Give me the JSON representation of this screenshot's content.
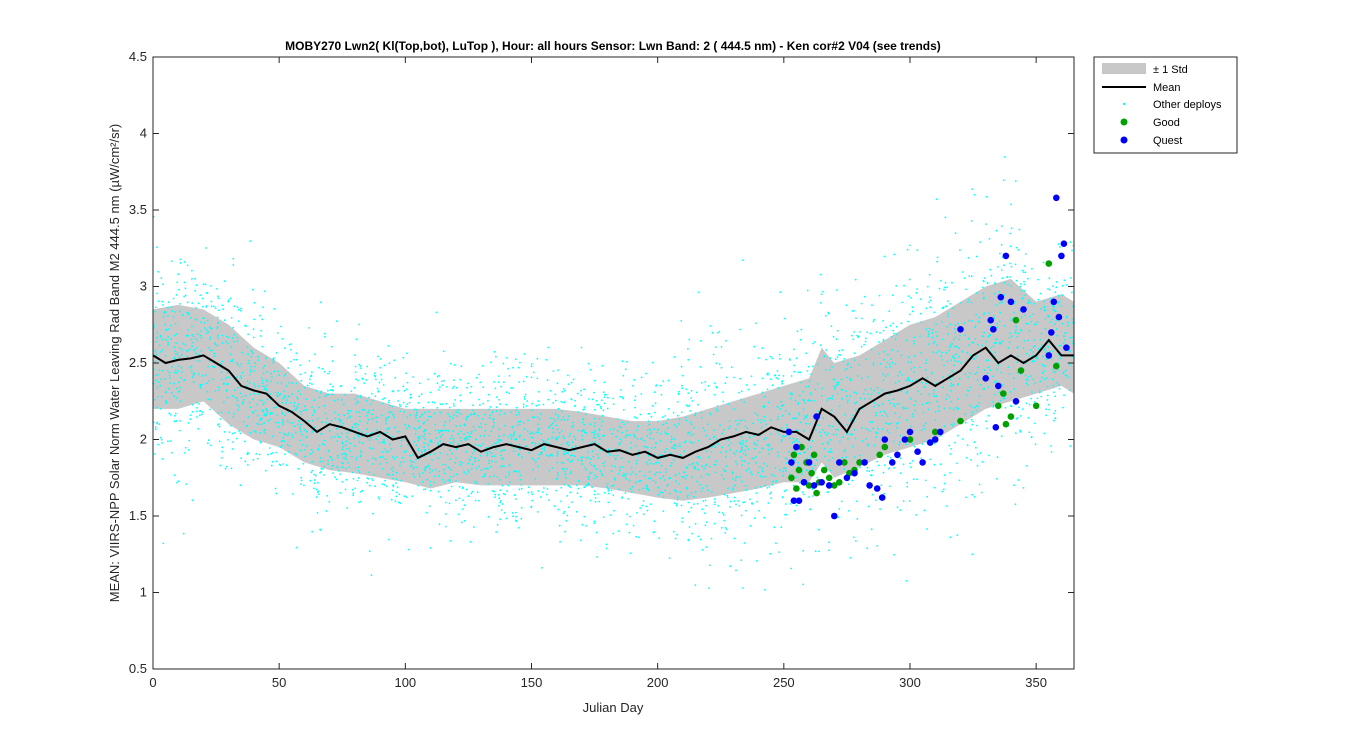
{
  "chart_data": {
    "type": "scatter",
    "title": "MOBY270   Lwn2( Kl(Top,bot), LuTop ),   Hour: all hours  Sensor: Lwn Band: 2 ( 444.5 nm)  - Ken cor#2 V04 (see trends)",
    "xlabel": "Julian Day",
    "ylabel": "MEAN: VIIRS-NPP Solar Norm Water Leaving Rad Band M2 444.5 nm (µW/cm²/sr)",
    "xlim": [
      0,
      365
    ],
    "ylim": [
      0.5,
      4.5
    ],
    "xticks": [
      0,
      50,
      100,
      150,
      200,
      250,
      300,
      350
    ],
    "yticks": [
      0.5,
      1,
      1.5,
      2,
      2.5,
      3,
      3.5,
      4,
      4.5
    ],
    "xtick_labels": [
      "0",
      "50",
      "100",
      "150",
      "200",
      "250",
      "300",
      "350"
    ],
    "ytick_labels": [
      "0.5",
      "1",
      "1.5",
      "2",
      "2.5",
      "3",
      "3.5",
      "4",
      "4.5"
    ],
    "grid": false,
    "legend_position": "outside-top-right",
    "colors": {
      "std_band": "#c8c8c8",
      "mean": "#000000",
      "other": "#00ffff",
      "good": "#00a000",
      "quest": "#0000ff"
    },
    "series": [
      {
        "name": "± 1 Std",
        "type": "band",
        "x": [
          0,
          10,
          20,
          30,
          40,
          50,
          60,
          70,
          80,
          90,
          100,
          110,
          120,
          130,
          140,
          150,
          160,
          170,
          180,
          190,
          200,
          210,
          220,
          230,
          240,
          250,
          260,
          265,
          270,
          280,
          290,
          300,
          310,
          320,
          330,
          340,
          350,
          360,
          365
        ],
        "lower": [
          2.2,
          2.2,
          2.25,
          2.1,
          2.0,
          1.95,
          1.85,
          1.8,
          1.78,
          1.75,
          1.72,
          1.68,
          1.72,
          1.7,
          1.7,
          1.7,
          1.7,
          1.7,
          1.68,
          1.65,
          1.62,
          1.6,
          1.62,
          1.65,
          1.68,
          1.72,
          1.72,
          1.85,
          1.75,
          1.82,
          1.9,
          1.95,
          2.0,
          2.1,
          2.2,
          2.25,
          2.3,
          2.35,
          2.3
        ],
        "upper": [
          2.85,
          2.88,
          2.85,
          2.75,
          2.6,
          2.5,
          2.35,
          2.3,
          2.3,
          2.25,
          2.2,
          2.2,
          2.2,
          2.2,
          2.2,
          2.2,
          2.2,
          2.18,
          2.15,
          2.12,
          2.12,
          2.15,
          2.2,
          2.25,
          2.3,
          2.35,
          2.4,
          2.6,
          2.5,
          2.55,
          2.65,
          2.75,
          2.8,
          2.9,
          3.0,
          3.05,
          2.9,
          2.95,
          2.9
        ]
      },
      {
        "name": "Mean",
        "type": "line",
        "x": [
          0,
          5,
          10,
          15,
          20,
          25,
          30,
          35,
          40,
          45,
          50,
          55,
          60,
          65,
          70,
          75,
          80,
          85,
          90,
          95,
          100,
          105,
          110,
          115,
          120,
          125,
          130,
          135,
          140,
          145,
          150,
          155,
          160,
          165,
          170,
          175,
          180,
          185,
          190,
          195,
          200,
          205,
          210,
          215,
          220,
          225,
          230,
          235,
          240,
          245,
          250,
          255,
          260,
          265,
          270,
          275,
          280,
          285,
          290,
          295,
          300,
          305,
          310,
          315,
          320,
          325,
          330,
          335,
          340,
          345,
          350,
          355,
          360,
          365
        ],
        "y": [
          2.55,
          2.5,
          2.52,
          2.53,
          2.55,
          2.5,
          2.45,
          2.35,
          2.32,
          2.3,
          2.22,
          2.18,
          2.12,
          2.05,
          2.1,
          2.08,
          2.05,
          2.02,
          2.05,
          2.0,
          2.02,
          1.88,
          1.92,
          1.97,
          1.95,
          1.97,
          1.92,
          1.95,
          1.97,
          1.95,
          1.93,
          1.97,
          1.95,
          1.93,
          1.95,
          1.97,
          1.92,
          1.93,
          1.9,
          1.92,
          1.88,
          1.9,
          1.88,
          1.92,
          1.95,
          2.0,
          2.02,
          2.05,
          2.03,
          2.08,
          2.05,
          2.05,
          2.0,
          2.2,
          2.15,
          2.05,
          2.2,
          2.25,
          2.3,
          2.32,
          2.35,
          2.4,
          2.35,
          2.4,
          2.45,
          2.55,
          2.6,
          2.5,
          2.55,
          2.5,
          2.55,
          2.65,
          2.55,
          2.55
        ]
      },
      {
        "name": "Other deploys",
        "type": "scatter",
        "generated_from_band": true,
        "count": 4000
      },
      {
        "name": "Good",
        "type": "scatter",
        "x": [
          253,
          254,
          255,
          256,
          257,
          258,
          259,
          260,
          261,
          262,
          263,
          264,
          266,
          268,
          270,
          272,
          274,
          276,
          278,
          280,
          288,
          290,
          300,
          310,
          320,
          335,
          337,
          338,
          340,
          342,
          344,
          350,
          355,
          358
        ],
        "y": [
          1.75,
          1.9,
          1.68,
          1.8,
          1.95,
          1.72,
          1.85,
          1.7,
          1.78,
          1.9,
          1.65,
          1.72,
          1.8,
          1.75,
          1.7,
          1.72,
          1.85,
          1.78,
          1.8,
          1.85,
          1.9,
          1.95,
          2.0,
          2.05,
          2.12,
          2.22,
          2.3,
          2.1,
          2.15,
          2.78,
          2.45,
          2.22,
          3.15,
          2.48
        ]
      },
      {
        "name": "Quest",
        "type": "scatter",
        "x": [
          252,
          253,
          254,
          255,
          256,
          258,
          260,
          262,
          263,
          265,
          268,
          270,
          272,
          275,
          278,
          282,
          284,
          287,
          289,
          290,
          293,
          295,
          298,
          300,
          303,
          305,
          308,
          310,
          312,
          320,
          330,
          332,
          333,
          334,
          335,
          336,
          338,
          340,
          342,
          345,
          355,
          356,
          357,
          358,
          359,
          360,
          361,
          362
        ],
        "y": [
          2.05,
          1.85,
          1.6,
          1.95,
          1.6,
          1.72,
          1.85,
          1.7,
          2.15,
          1.72,
          1.7,
          1.5,
          1.85,
          1.75,
          1.78,
          1.85,
          1.7,
          1.68,
          1.62,
          2.0,
          1.85,
          1.9,
          2.0,
          2.05,
          1.92,
          1.85,
          1.98,
          2.0,
          2.05,
          2.72,
          2.4,
          2.78,
          2.72,
          2.08,
          2.35,
          2.93,
          3.2,
          2.9,
          2.25,
          2.85,
          2.55,
          2.7,
          2.9,
          3.58,
          2.8,
          3.2,
          3.28,
          2.6
        ]
      }
    ]
  }
}
